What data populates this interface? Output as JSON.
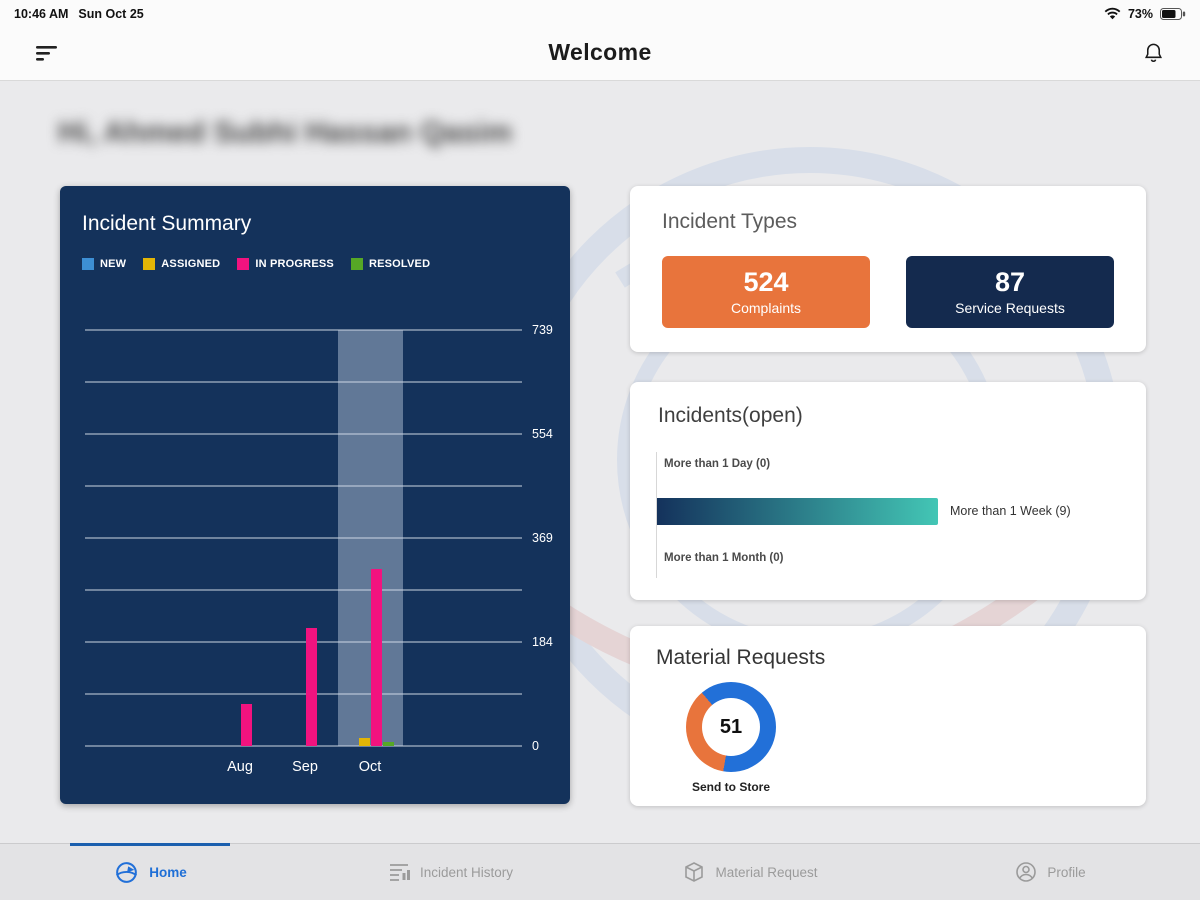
{
  "status_bar": {
    "time": "10:46 AM",
    "date": "Sun Oct 25",
    "battery_percent": "73%"
  },
  "header": {
    "title": "Welcome"
  },
  "greeting": {
    "text": "Hi, Ahmed Subhi Hassan Qasim"
  },
  "incident_summary": {
    "title": "Incident Summary",
    "legend": [
      {
        "label": "NEW",
        "color": "#3d8fd4"
      },
      {
        "label": "ASSIGNED",
        "color": "#e3b505"
      },
      {
        "label": "IN PROGRESS",
        "color": "#f2137f"
      },
      {
        "label": "RESOLVED",
        "color": "#56a826"
      }
    ]
  },
  "chart_data": [
    {
      "type": "bar",
      "title": "Incident Summary",
      "categories": [
        "Aug",
        "Sep",
        "Oct"
      ],
      "series": [
        {
          "name": "NEW",
          "color": "#3d8fd4",
          "values": [
            0,
            0,
            0
          ]
        },
        {
          "name": "ASSIGNED",
          "color": "#e3b505",
          "values": [
            0,
            0,
            15
          ]
        },
        {
          "name": "IN PROGRESS",
          "color": "#f2137f",
          "values": [
            75,
            210,
            315
          ]
        },
        {
          "name": "RESOLVED",
          "color": "#56a826",
          "values": [
            0,
            0,
            8
          ]
        }
      ],
      "y_ticks": [
        739,
        554,
        369,
        184,
        0
      ],
      "ylim": [
        0,
        739
      ],
      "highlighted_category": "Oct",
      "legend_position": "top",
      "grid": true
    },
    {
      "type": "donut",
      "title": "Material Requests",
      "center_value": "51",
      "label": "Send to Store",
      "start_angle": 190,
      "segments": [
        {
          "name": "primary",
          "pct": 64,
          "color": "#2270d8"
        },
        {
          "name": "secondary",
          "pct": 36,
          "color": "#e8743c"
        }
      ]
    }
  ],
  "incident_types": {
    "title": "Incident Types",
    "stats": [
      {
        "value": "524",
        "label": "Complaints",
        "bg": "#e8743c"
      },
      {
        "value": "87",
        "label": "Service Requests",
        "bg": "#142a4e"
      }
    ]
  },
  "incidents_open": {
    "title": "Incidents(open)",
    "rows": [
      {
        "label": "More than 1 Day (0)"
      },
      {
        "label": "More than 1 Week (9)"
      },
      {
        "label": "More than 1 Month (0)"
      }
    ],
    "bar_gradient": [
      "#14325c",
      "#43c6b5"
    ]
  },
  "material_requests": {
    "title": "Material Requests",
    "donut_value": "51",
    "donut_label": "Send to Store"
  },
  "bottom_nav": {
    "active_color": "#1f6fd6",
    "items": [
      {
        "label": "Home",
        "active": true
      },
      {
        "label": "Incident History",
        "active": false
      },
      {
        "label": "Material Request",
        "active": false
      },
      {
        "label": "Profile",
        "active": false
      }
    ]
  }
}
